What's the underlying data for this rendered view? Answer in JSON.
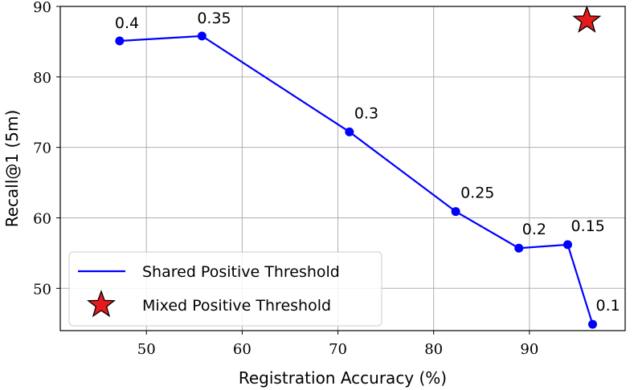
{
  "chart_data": {
    "type": "line",
    "title": "",
    "xlabel": "Registration Accuracy (%)",
    "ylabel": "Recall@1 (5m)",
    "xlim": [
      41.0,
      100.0
    ],
    "ylim": [
      44.0,
      90.0
    ],
    "xticks": [
      50,
      60,
      70,
      80,
      90
    ],
    "yticks": [
      50,
      60,
      70,
      80,
      90
    ],
    "grid": true,
    "legend_position": "lower-left",
    "series": [
      {
        "name": "Shared Positive Threshold",
        "kind": "line-marker",
        "color": "#0000ff",
        "points": [
          {
            "x": 47.2,
            "y": 85.1,
            "label": "0.4"
          },
          {
            "x": 55.8,
            "y": 85.8,
            "label": "0.35"
          },
          {
            "x": 71.2,
            "y": 72.2,
            "label": "0.3"
          },
          {
            "x": 82.3,
            "y": 60.9,
            "label": "0.25"
          },
          {
            "x": 88.9,
            "y": 55.7,
            "label": "0.2"
          },
          {
            "x": 94.0,
            "y": 56.2,
            "label": "0.15"
          },
          {
            "x": 96.6,
            "y": 44.9,
            "label": "0.1"
          }
        ]
      },
      {
        "name": "Mixed Positive Threshold",
        "kind": "star-marker",
        "color": "#e41a1c",
        "points": [
          {
            "x": 96.0,
            "y": 88.0
          }
        ]
      }
    ]
  }
}
